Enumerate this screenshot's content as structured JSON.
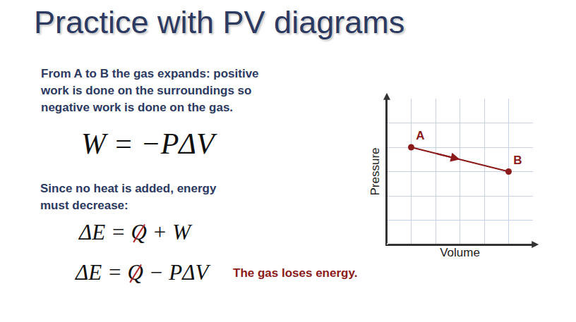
{
  "title": "Practice with PV diagrams",
  "paragraphs": [
    [
      "From A to B the gas expands:  positive",
      "work is done on the surroundings so",
      "negative work is done on the gas."
    ],
    [
      "Since no heat is added, energy",
      "must decrease:"
    ]
  ],
  "equations": [
    [
      {
        "text": "W = −PΔV"
      }
    ],
    [
      {
        "text": "ΔE = "
      },
      {
        "text": "Q",
        "crossed": true
      },
      {
        "text": " + W"
      }
    ],
    [
      {
        "text": "ΔE = "
      },
      {
        "text": "Q",
        "crossed": true
      },
      {
        "text": " − PΔV"
      }
    ]
  ],
  "conclusion": "The gas loses energy.",
  "chart_data": {
    "type": "line",
    "xlabel": "Volume",
    "ylabel": "Pressure",
    "x": [
      1,
      5
    ],
    "values": [
      4,
      3
    ],
    "labels": [
      "A",
      "B"
    ],
    "color": "#8b1a1a",
    "marker": "circle",
    "xlim": [
      0,
      6
    ],
    "ylim": [
      0,
      6
    ],
    "xticks": [
      0,
      1,
      2,
      3,
      4,
      5,
      6
    ],
    "yticks": [
      0,
      1,
      2,
      3,
      4,
      5,
      6
    ],
    "grid": true,
    "tick_labels": false
  }
}
